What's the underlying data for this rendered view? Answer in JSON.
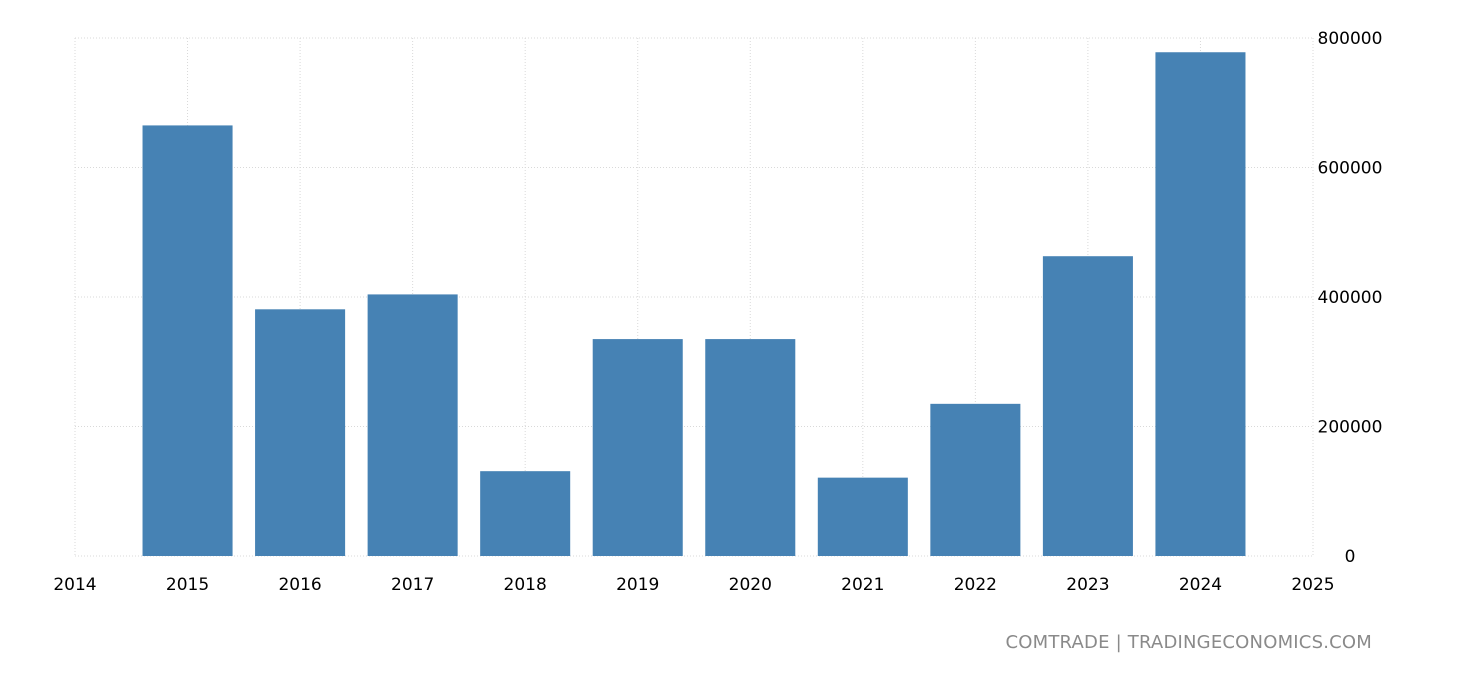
{
  "source": "COMTRADE | TRADINGECONOMICS.COM",
  "colors": {
    "bar": "#4682b4",
    "grid": "#d9d9d9",
    "axis_text": "#000000",
    "source_text": "#8a8a8a"
  },
  "chart_data": {
    "type": "bar",
    "title": "",
    "xlabel": "",
    "ylabel": "",
    "categories": [
      "2015",
      "2016",
      "2017",
      "2018",
      "2019",
      "2020",
      "2021",
      "2022",
      "2023",
      "2024"
    ],
    "values": [
      665000,
      381000,
      404000,
      131000,
      335000,
      335000,
      121000,
      235000,
      463000,
      778000
    ],
    "x_ticks": [
      "2014",
      "2015",
      "2016",
      "2017",
      "2018",
      "2019",
      "2020",
      "2021",
      "2022",
      "2023",
      "2024",
      "2025"
    ],
    "xlim": [
      2014,
      2025
    ],
    "y_ticks": [
      "0",
      "200000",
      "400000",
      "600000",
      "800000"
    ],
    "ylim": [
      0,
      800000
    ],
    "y_axis_side": "right",
    "grid": true,
    "legend": "none"
  }
}
